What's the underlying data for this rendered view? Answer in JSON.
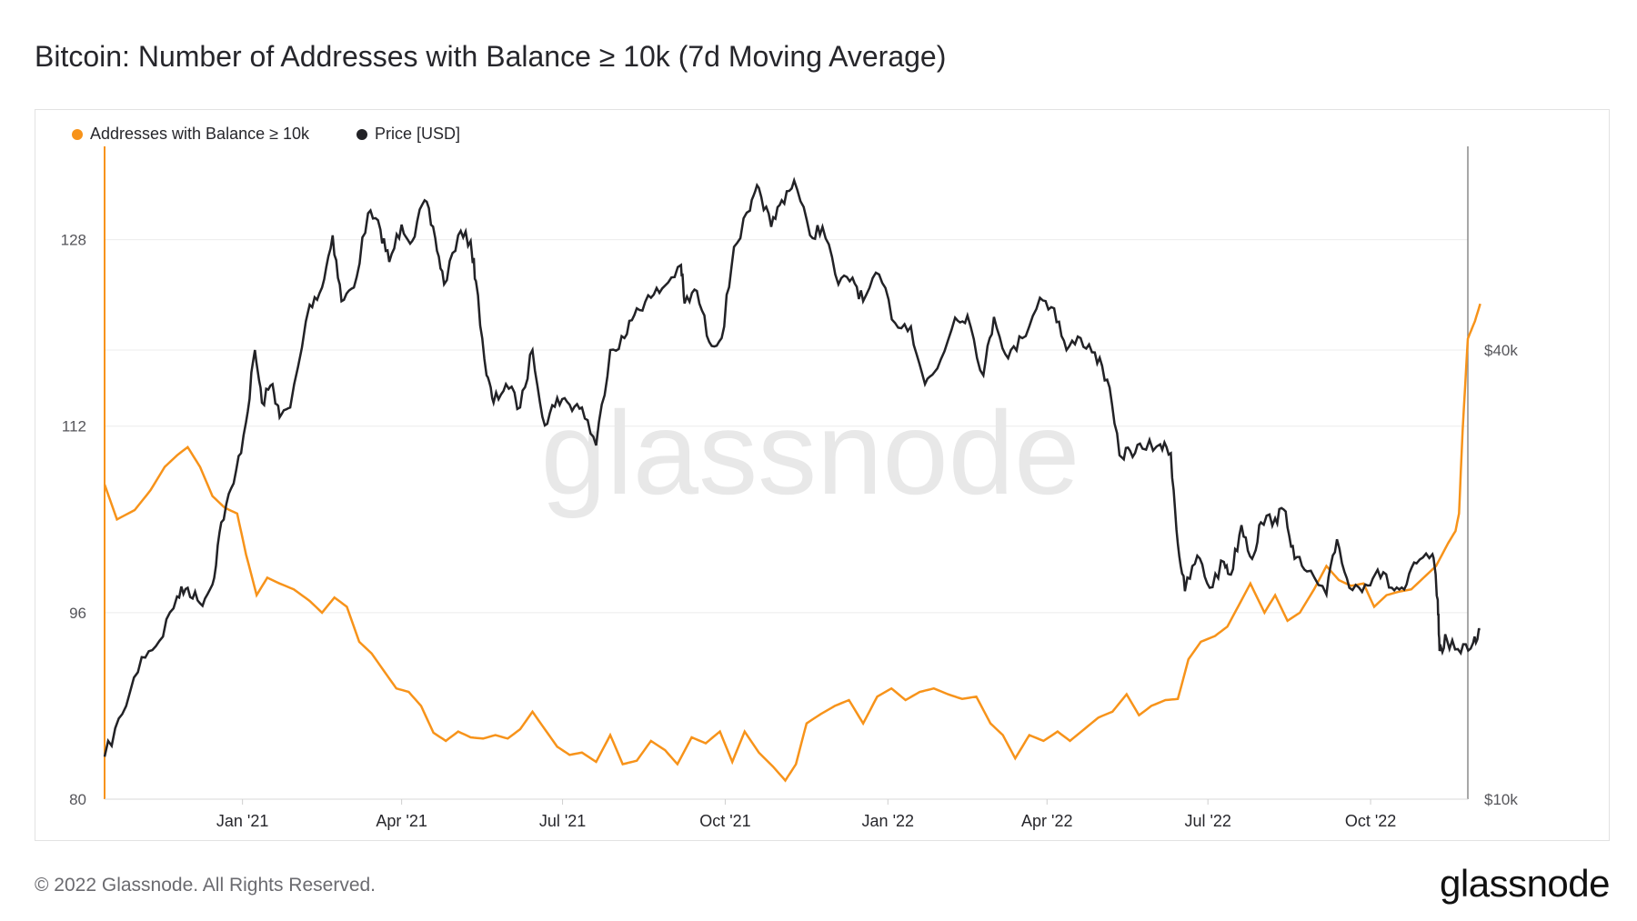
{
  "title": "Bitcoin: Number of Addresses with Balance ≥ 10k (7d Moving Average)",
  "footer": {
    "copyright": "© 2022 Glassnode. All Rights Reserved.",
    "logo_text": "glassnode"
  },
  "watermark": "glassnode",
  "colors": {
    "addresses": "#f7931a",
    "price": "#222226",
    "grid": "#ececec",
    "watermark": "#e8e8e8"
  },
  "chart_data": {
    "type": "line",
    "legend_position": "top-left",
    "grid": true,
    "x_ticks": [
      "Jan '21",
      "Apr '21",
      "Jul '21",
      "Oct '21",
      "Jan '22",
      "Apr '22",
      "Jul '22",
      "Oct '22"
    ],
    "x_range": [
      "2020-10-15",
      "2022-11-25"
    ],
    "y_left": {
      "ticks": [
        "80",
        "96",
        "112",
        "128"
      ],
      "range": [
        80,
        136
      ]
    },
    "y_right": {
      "ticks": [
        "$10k",
        "$40k"
      ],
      "range_usd": [
        10000,
        75000
      ],
      "scale": "log"
    },
    "series": [
      {
        "name": "Addresses with Balance ≥ 10k",
        "axis": "left",
        "points": [
          [
            "2020-10-15",
            107.0
          ],
          [
            "2020-10-22",
            104.0
          ],
          [
            "2020-11-01",
            104.8
          ],
          [
            "2020-11-10",
            106.5
          ],
          [
            "2020-11-18",
            108.5
          ],
          [
            "2020-11-25",
            109.5
          ],
          [
            "2020-12-01",
            110.2
          ],
          [
            "2020-12-08",
            108.5
          ],
          [
            "2020-12-15",
            106.0
          ],
          [
            "2020-12-22",
            105.0
          ],
          [
            "2020-12-29",
            104.5
          ],
          [
            "2021-01-03",
            101.0
          ],
          [
            "2021-01-09",
            97.5
          ],
          [
            "2021-01-15",
            99.0
          ],
          [
            "2021-01-22",
            98.5
          ],
          [
            "2021-01-30",
            98.0
          ],
          [
            "2021-02-08",
            97.0
          ],
          [
            "2021-02-15",
            96.0
          ],
          [
            "2021-02-22",
            97.3
          ],
          [
            "2021-03-01",
            96.5
          ],
          [
            "2021-03-08",
            93.5
          ],
          [
            "2021-03-15",
            92.5
          ],
          [
            "2021-03-22",
            91.0
          ],
          [
            "2021-03-29",
            89.5
          ],
          [
            "2021-04-05",
            89.2
          ],
          [
            "2021-04-12",
            88.0
          ],
          [
            "2021-04-19",
            85.7
          ],
          [
            "2021-04-26",
            85.0
          ],
          [
            "2021-05-03",
            85.8
          ],
          [
            "2021-05-10",
            85.3
          ],
          [
            "2021-05-17",
            85.2
          ],
          [
            "2021-05-24",
            85.5
          ],
          [
            "2021-05-31",
            85.2
          ],
          [
            "2021-06-07",
            86.0
          ],
          [
            "2021-06-14",
            87.5
          ],
          [
            "2021-06-21",
            86.0
          ],
          [
            "2021-06-28",
            84.5
          ],
          [
            "2021-07-05",
            83.8
          ],
          [
            "2021-07-12",
            84.0
          ],
          [
            "2021-07-20",
            83.2
          ],
          [
            "2021-07-28",
            85.5
          ],
          [
            "2021-08-04",
            83.0
          ],
          [
            "2021-08-12",
            83.3
          ],
          [
            "2021-08-20",
            85.0
          ],
          [
            "2021-08-28",
            84.2
          ],
          [
            "2021-09-04",
            83.0
          ],
          [
            "2021-09-12",
            85.3
          ],
          [
            "2021-09-20",
            84.8
          ],
          [
            "2021-09-28",
            85.8
          ],
          [
            "2021-10-05",
            83.2
          ],
          [
            "2021-10-12",
            85.8
          ],
          [
            "2021-10-20",
            84.0
          ],
          [
            "2021-10-28",
            82.8
          ],
          [
            "2021-11-04",
            81.6
          ],
          [
            "2021-11-10",
            83.0
          ],
          [
            "2021-11-16",
            86.5
          ],
          [
            "2021-11-24",
            87.3
          ],
          [
            "2021-12-02",
            88.0
          ],
          [
            "2021-12-10",
            88.5
          ],
          [
            "2021-12-18",
            86.5
          ],
          [
            "2021-12-26",
            88.8
          ],
          [
            "2022-01-03",
            89.5
          ],
          [
            "2022-01-11",
            88.5
          ],
          [
            "2022-01-19",
            89.2
          ],
          [
            "2022-01-27",
            89.5
          ],
          [
            "2022-02-04",
            89.0
          ],
          [
            "2022-02-12",
            88.6
          ],
          [
            "2022-02-20",
            88.8
          ],
          [
            "2022-02-28",
            86.5
          ],
          [
            "2022-03-07",
            85.5
          ],
          [
            "2022-03-14",
            83.5
          ],
          [
            "2022-03-22",
            85.5
          ],
          [
            "2022-03-30",
            85.0
          ],
          [
            "2022-04-07",
            85.8
          ],
          [
            "2022-04-14",
            85.0
          ],
          [
            "2022-04-22",
            86.0
          ],
          [
            "2022-04-30",
            87.0
          ],
          [
            "2022-05-08",
            87.5
          ],
          [
            "2022-05-16",
            89.0
          ],
          [
            "2022-05-23",
            87.2
          ],
          [
            "2022-05-30",
            88.0
          ],
          [
            "2022-06-07",
            88.5
          ],
          [
            "2022-06-14",
            88.6
          ],
          [
            "2022-06-20",
            92.0
          ],
          [
            "2022-06-27",
            93.5
          ],
          [
            "2022-07-05",
            94.0
          ],
          [
            "2022-07-12",
            94.8
          ],
          [
            "2022-07-18",
            96.5
          ],
          [
            "2022-07-25",
            98.5
          ],
          [
            "2022-08-02",
            96.0
          ],
          [
            "2022-08-08",
            97.5
          ],
          [
            "2022-08-15",
            95.3
          ],
          [
            "2022-08-22",
            96.0
          ],
          [
            "2022-08-30",
            98.0
          ],
          [
            "2022-09-06",
            100.0
          ],
          [
            "2022-09-13",
            98.8
          ],
          [
            "2022-09-20",
            98.3
          ],
          [
            "2022-09-27",
            98.5
          ],
          [
            "2022-10-03",
            96.5
          ],
          [
            "2022-10-10",
            97.5
          ],
          [
            "2022-10-17",
            97.8
          ],
          [
            "2022-10-24",
            98.0
          ],
          [
            "2022-10-31",
            99.0
          ],
          [
            "2022-11-07",
            100.0
          ],
          [
            "2022-11-14",
            102.0
          ],
          [
            "2022-11-18",
            103.0
          ],
          [
            "2022-11-20",
            104.5
          ],
          [
            "2022-11-22",
            111.5
          ],
          [
            "2022-11-25",
            119.5
          ],
          [
            "2022-11-29",
            121.0
          ],
          [
            "2022-12-02",
            122.5
          ]
        ]
      },
      {
        "name": "Price [USD]",
        "axis": "right",
        "points": [
          [
            "2020-10-15",
            11400
          ],
          [
            "2020-10-25",
            13000
          ],
          [
            "2020-11-05",
            15500
          ],
          [
            "2020-11-15",
            16300
          ],
          [
            "2020-11-25",
            18700
          ],
          [
            "2020-12-01",
            19200
          ],
          [
            "2020-12-08",
            18300
          ],
          [
            "2020-12-15",
            19400
          ],
          [
            "2020-12-20",
            23500
          ],
          [
            "2020-12-27",
            26500
          ],
          [
            "2021-01-03",
            32000
          ],
          [
            "2021-01-08",
            40000
          ],
          [
            "2021-01-12",
            34000
          ],
          [
            "2021-01-18",
            36000
          ],
          [
            "2021-01-22",
            32500
          ],
          [
            "2021-01-28",
            33500
          ],
          [
            "2021-02-08",
            46000
          ],
          [
            "2021-02-15",
            48500
          ],
          [
            "2021-02-21",
            57000
          ],
          [
            "2021-02-26",
            46500
          ],
          [
            "2021-03-05",
            48500
          ],
          [
            "2021-03-13",
            61000
          ],
          [
            "2021-03-20",
            58000
          ],
          [
            "2021-03-25",
            52500
          ],
          [
            "2021-04-01",
            58900
          ],
          [
            "2021-04-07",
            56000
          ],
          [
            "2021-04-14",
            63500
          ],
          [
            "2021-04-20",
            56500
          ],
          [
            "2021-04-25",
            49000
          ],
          [
            "2021-05-03",
            57000
          ],
          [
            "2021-05-10",
            56000
          ],
          [
            "2021-05-13",
            49500
          ],
          [
            "2021-05-19",
            37000
          ],
          [
            "2021-05-23",
            34000
          ],
          [
            "2021-05-30",
            36000
          ],
          [
            "2021-06-07",
            33500
          ],
          [
            "2021-06-14",
            40000
          ],
          [
            "2021-06-21",
            31700
          ],
          [
            "2021-06-28",
            34500
          ],
          [
            "2021-07-05",
            33800
          ],
          [
            "2021-07-12",
            33500
          ],
          [
            "2021-07-20",
            29800
          ],
          [
            "2021-07-28",
            40000
          ],
          [
            "2021-08-05",
            41500
          ],
          [
            "2021-08-12",
            45500
          ],
          [
            "2021-08-20",
            47000
          ],
          [
            "2021-08-28",
            48800
          ],
          [
            "2021-09-06",
            52000
          ],
          [
            "2021-09-08",
            46200
          ],
          [
            "2021-09-15",
            48000
          ],
          [
            "2021-09-22",
            41000
          ],
          [
            "2021-09-29",
            41500
          ],
          [
            "2021-10-06",
            55000
          ],
          [
            "2021-10-15",
            61500
          ],
          [
            "2021-10-20",
            66000
          ],
          [
            "2021-10-27",
            58500
          ],
          [
            "2021-11-02",
            63500
          ],
          [
            "2021-11-09",
            67500
          ],
          [
            "2021-11-18",
            57000
          ],
          [
            "2021-11-25",
            58500
          ],
          [
            "2021-12-04",
            49000
          ],
          [
            "2021-12-12",
            50000
          ],
          [
            "2021-12-18",
            46500
          ],
          [
            "2021-12-27",
            50500
          ],
          [
            "2022-01-05",
            43500
          ],
          [
            "2022-01-14",
            43000
          ],
          [
            "2022-01-22",
            36000
          ],
          [
            "2022-01-29",
            37800
          ],
          [
            "2022-02-08",
            44200
          ],
          [
            "2022-02-15",
            44500
          ],
          [
            "2022-02-24",
            37000
          ],
          [
            "2022-03-02",
            44300
          ],
          [
            "2022-03-10",
            39000
          ],
          [
            "2022-03-18",
            41500
          ],
          [
            "2022-03-28",
            47000
          ],
          [
            "2022-04-05",
            45500
          ],
          [
            "2022-04-12",
            40000
          ],
          [
            "2022-04-20",
            41500
          ],
          [
            "2022-04-28",
            39700
          ],
          [
            "2022-05-05",
            36500
          ],
          [
            "2022-05-12",
            28900
          ],
          [
            "2022-05-18",
            29300
          ],
          [
            "2022-05-25",
            29500
          ],
          [
            "2022-06-04",
            29900
          ],
          [
            "2022-06-10",
            29100
          ],
          [
            "2022-06-14",
            22000
          ],
          [
            "2022-06-18",
            19000
          ],
          [
            "2022-06-25",
            21200
          ],
          [
            "2022-07-02",
            19200
          ],
          [
            "2022-07-10",
            20800
          ],
          [
            "2022-07-14",
            20000
          ],
          [
            "2022-07-20",
            23300
          ],
          [
            "2022-07-26",
            21000
          ],
          [
            "2022-07-31",
            23500
          ],
          [
            "2022-08-08",
            23800
          ],
          [
            "2022-08-14",
            24300
          ],
          [
            "2022-08-19",
            21000
          ],
          [
            "2022-08-26",
            20200
          ],
          [
            "2022-09-06",
            18800
          ],
          [
            "2022-09-12",
            22300
          ],
          [
            "2022-09-19",
            19200
          ],
          [
            "2022-09-28",
            19400
          ],
          [
            "2022-10-05",
            20300
          ],
          [
            "2022-10-13",
            19200
          ],
          [
            "2022-10-20",
            19100
          ],
          [
            "2022-10-27",
            20700
          ],
          [
            "2022-11-05",
            21300
          ],
          [
            "2022-11-08",
            18500
          ],
          [
            "2022-11-09",
            15800
          ],
          [
            "2022-11-13",
            16400
          ],
          [
            "2022-11-21",
            15700
          ],
          [
            "2022-11-28",
            16200
          ],
          [
            "2022-12-02",
            16900
          ]
        ]
      }
    ]
  }
}
